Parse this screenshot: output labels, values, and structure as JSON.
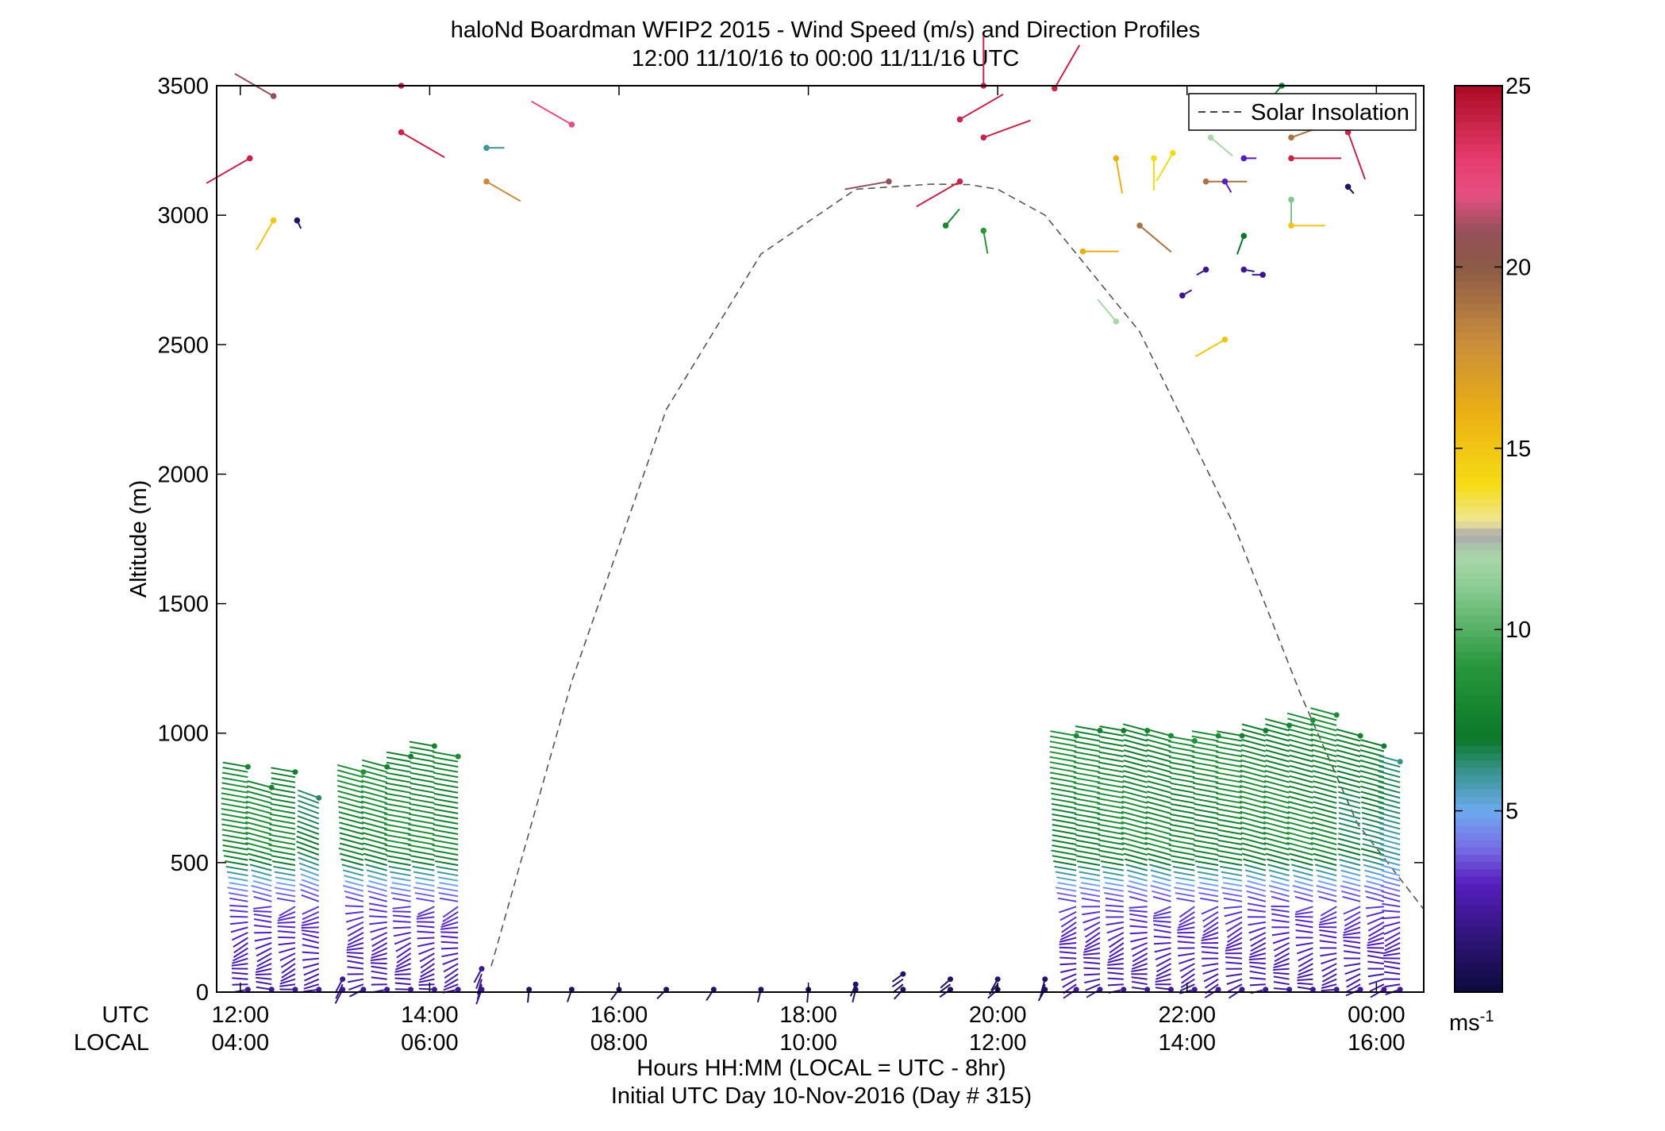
{
  "chart_data": {
    "type": "wind-barb",
    "title": "haloNd Boardman WFIP2 2015 - Wind Speed (m/s) and Direction Profiles",
    "subtitle": "12:00 11/10/16 to 00:00 11/11/16  UTC",
    "ylabel": "Altitude (m)",
    "ylim": [
      0,
      3500
    ],
    "yticks": [
      "0",
      "500",
      "1000",
      "1500",
      "2000",
      "2500",
      "3000",
      "3500"
    ],
    "xlim": [
      11.75,
      24.5
    ],
    "xtick_positions": [
      12,
      14,
      16,
      18,
      20,
      22,
      24
    ],
    "xtick_labels_utc": [
      "12:00",
      "14:00",
      "16:00",
      "18:00",
      "20:00",
      "22:00",
      "00:00"
    ],
    "xtick_labels_local": [
      "04:00",
      "06:00",
      "08:00",
      "10:00",
      "12:00",
      "14:00",
      "16:00"
    ],
    "row_label_utc": "UTC",
    "row_label_local": "LOCAL",
    "xlabel": "Hours HH:MM  (LOCAL = UTC - 8hr)",
    "xlabel2": "Initial UTC Day 10-Nov-2016 (Day # 315)",
    "legend": {
      "label": "Solar Insolation",
      "position": "top-right"
    },
    "colorbar": {
      "min": 0,
      "max": 25,
      "ticks": [
        "5",
        "10",
        "15",
        "20",
        "25"
      ],
      "unit_base": "ms",
      "unit_sup": "-1"
    },
    "solar_insolation": {
      "x": [
        14.65,
        15.5,
        16.5,
        17.5,
        18.5,
        19.3,
        19.7,
        20.0,
        20.5,
        21.5,
        22.5,
        23.2,
        23.8,
        24.5
      ],
      "y": [
        100,
        1200,
        2250,
        2850,
        3100,
        3120,
        3118,
        3100,
        3000,
        2550,
        1800,
        1150,
        650,
        320
      ]
    },
    "profiles": [
      {
        "t": 12.08,
        "top": 880,
        "spd_low": 3,
        "spd_mid": 8,
        "dir": 280
      },
      {
        "t": 12.33,
        "top": 800,
        "spd_low": 3,
        "spd_mid": 8,
        "dir": 285
      },
      {
        "t": 12.58,
        "top": 860,
        "spd_low": 3,
        "spd_mid": 8,
        "dir": 280
      },
      {
        "t": 12.83,
        "top": 760,
        "spd_low": 3,
        "spd_mid": 7,
        "dir": 290
      },
      {
        "t": 13.08,
        "top": 60,
        "spd_low": 2,
        "spd_mid": 2,
        "dir": 250
      },
      {
        "t": 13.3,
        "top": 850,
        "spd_low": 3,
        "spd_mid": 8,
        "dir": 285
      },
      {
        "t": 13.55,
        "top": 880,
        "spd_low": 3,
        "spd_mid": 8,
        "dir": 285
      },
      {
        "t": 13.8,
        "top": 920,
        "spd_low": 3,
        "spd_mid": 8,
        "dir": 280
      },
      {
        "t": 14.05,
        "top": 960,
        "spd_low": 3,
        "spd_mid": 8,
        "dir": 280
      },
      {
        "t": 14.3,
        "top": 920,
        "spd_low": 3,
        "spd_mid": 8,
        "dir": 280
      },
      {
        "t": 14.55,
        "top": 100,
        "spd_low": 2,
        "spd_mid": 2,
        "dir": 240
      },
      {
        "t": 15.05,
        "top": 20,
        "spd_low": 1,
        "spd_mid": 1,
        "dir": 230
      },
      {
        "t": 15.5,
        "top": 20,
        "spd_low": 1,
        "spd_mid": 1,
        "dir": 230
      },
      {
        "t": 16.0,
        "top": 20,
        "spd_low": 1,
        "spd_mid": 1,
        "dir": 230
      },
      {
        "t": 16.5,
        "top": 20,
        "spd_low": 1,
        "spd_mid": 1,
        "dir": 230
      },
      {
        "t": 17.0,
        "top": 20,
        "spd_low": 1,
        "spd_mid": 1,
        "dir": 230
      },
      {
        "t": 17.5,
        "top": 20,
        "spd_low": 1,
        "spd_mid": 1,
        "dir": 230
      },
      {
        "t": 18.0,
        "top": 20,
        "spd_low": 1,
        "spd_mid": 1,
        "dir": 230
      },
      {
        "t": 18.5,
        "top": 40,
        "spd_low": 1,
        "spd_mid": 1,
        "dir": 230
      },
      {
        "t": 19.0,
        "top": 80,
        "spd_low": 1,
        "spd_mid": 1,
        "dir": 240
      },
      {
        "t": 19.5,
        "top": 60,
        "spd_low": 1,
        "spd_mid": 1,
        "dir": 240
      },
      {
        "t": 20.0,
        "top": 60,
        "spd_low": 1,
        "spd_mid": 1,
        "dir": 240
      },
      {
        "t": 20.5,
        "top": 60,
        "spd_low": 1,
        "spd_mid": 1,
        "dir": 240
      },
      {
        "t": 20.83,
        "top": 1000,
        "spd_low": 3,
        "spd_mid": 8,
        "dir": 280
      },
      {
        "t": 21.08,
        "top": 1020,
        "spd_low": 3,
        "spd_mid": 8,
        "dir": 280
      },
      {
        "t": 21.33,
        "top": 1020,
        "spd_low": 3,
        "spd_mid": 8,
        "dir": 280
      },
      {
        "t": 21.58,
        "top": 1020,
        "spd_low": 3,
        "spd_mid": 8,
        "dir": 285
      },
      {
        "t": 21.83,
        "top": 1000,
        "spd_low": 3,
        "spd_mid": 8,
        "dir": 285
      },
      {
        "t": 22.08,
        "top": 980,
        "spd_low": 3,
        "spd_mid": 8,
        "dir": 280
      },
      {
        "t": 22.33,
        "top": 1000,
        "spd_low": 3,
        "spd_mid": 8,
        "dir": 280
      },
      {
        "t": 22.58,
        "top": 1000,
        "spd_low": 3,
        "spd_mid": 8,
        "dir": 280
      },
      {
        "t": 22.83,
        "top": 1020,
        "spd_low": 3,
        "spd_mid": 8,
        "dir": 285
      },
      {
        "t": 23.08,
        "top": 1040,
        "spd_low": 3,
        "spd_mid": 8,
        "dir": 285
      },
      {
        "t": 23.33,
        "top": 1060,
        "spd_low": 3,
        "spd_mid": 8,
        "dir": 285
      },
      {
        "t": 23.58,
        "top": 1080,
        "spd_low": 3,
        "spd_mid": 8,
        "dir": 285
      },
      {
        "t": 23.83,
        "top": 1000,
        "spd_low": 3,
        "spd_mid": 7,
        "dir": 285
      },
      {
        "t": 24.08,
        "top": 960,
        "spd_low": 3,
        "spd_mid": 7,
        "dir": 285
      },
      {
        "t": 24.25,
        "top": 900,
        "spd_low": 3,
        "spd_mid": 6,
        "dir": 285
      }
    ],
    "upper_points": [
      {
        "t": 12.1,
        "alt": 3220,
        "spd": 24,
        "dir": 240
      },
      {
        "t": 12.35,
        "alt": 3460,
        "spd": 21,
        "dir": 300
      },
      {
        "t": 12.35,
        "alt": 2980,
        "spd": 15,
        "dir": 210
      },
      {
        "t": 12.6,
        "alt": 2980,
        "spd": 1,
        "dir": 155
      },
      {
        "t": 13.7,
        "alt": 3500,
        "spd": 24,
        "dir": 90
      },
      {
        "t": 13.7,
        "alt": 3320,
        "spd": 24,
        "dir": 120
      },
      {
        "t": 14.6,
        "alt": 3260,
        "spd": 6,
        "dir": 90
      },
      {
        "t": 14.6,
        "alt": 3130,
        "spd": 18,
        "dir": 120
      },
      {
        "t": 15.5,
        "alt": 3350,
        "spd": 22,
        "dir": 300
      },
      {
        "t": 18.85,
        "alt": 3130,
        "spd": 21,
        "dir": 260
      },
      {
        "t": 19.45,
        "alt": 2960,
        "spd": 8,
        "dir": 40
      },
      {
        "t": 19.6,
        "alt": 3130,
        "spd": 24,
        "dir": 240
      },
      {
        "t": 19.6,
        "alt": 3370,
        "spd": 24,
        "dir": 60
      },
      {
        "t": 19.85,
        "alt": 3300,
        "spd": 24,
        "dir": 70
      },
      {
        "t": 19.85,
        "alt": 2940,
        "spd": 9,
        "dir": 170
      },
      {
        "t": 19.85,
        "alt": 3500,
        "spd": 24,
        "dir": 0
      },
      {
        "t": 20.6,
        "alt": 3490,
        "spd": 24,
        "dir": 30
      },
      {
        "t": 20.9,
        "alt": 2860,
        "spd": 16,
        "dir": 90
      },
      {
        "t": 21.25,
        "alt": 3220,
        "spd": 16,
        "dir": 170
      },
      {
        "t": 21.25,
        "alt": 2590,
        "spd": 12,
        "dir": 320
      },
      {
        "t": 21.5,
        "alt": 2960,
        "spd": 19,
        "dir": 130
      },
      {
        "t": 21.65,
        "alt": 3220,
        "spd": 14,
        "dir": 180
      },
      {
        "t": 21.85,
        "alt": 3240,
        "spd": 14,
        "dir": 210
      },
      {
        "t": 21.95,
        "alt": 2690,
        "spd": 2,
        "dir": 60
      },
      {
        "t": 22.2,
        "alt": 2790,
        "spd": 2,
        "dir": 240
      },
      {
        "t": 22.2,
        "alt": 3130,
        "spd": 19,
        "dir": 90
      },
      {
        "t": 22.25,
        "alt": 3300,
        "spd": 12,
        "dir": 130
      },
      {
        "t": 22.4,
        "alt": 3130,
        "spd": 3,
        "dir": 150
      },
      {
        "t": 22.4,
        "alt": 2520,
        "spd": 15,
        "dir": 240
      },
      {
        "t": 22.6,
        "alt": 3220,
        "spd": 3,
        "dir": 90
      },
      {
        "t": 22.6,
        "alt": 2920,
        "spd": 7,
        "dir": 200
      },
      {
        "t": 22.6,
        "alt": 2790,
        "spd": 2,
        "dir": 100
      },
      {
        "t": 22.8,
        "alt": 2770,
        "spd": 2,
        "dir": 270
      },
      {
        "t": 23.0,
        "alt": 3500,
        "spd": 8,
        "dir": 220
      },
      {
        "t": 23.1,
        "alt": 3300,
        "spd": 19,
        "dir": 70
      },
      {
        "t": 23.1,
        "alt": 3220,
        "spd": 24,
        "dir": 90
      },
      {
        "t": 23.1,
        "alt": 3060,
        "spd": 11,
        "dir": 180
      },
      {
        "t": 23.1,
        "alt": 2960,
        "spd": 15,
        "dir": 90
      },
      {
        "t": 23.7,
        "alt": 3320,
        "spd": 24,
        "dir": 160
      },
      {
        "t": 23.7,
        "alt": 3110,
        "spd": 1,
        "dir": 140
      }
    ]
  }
}
